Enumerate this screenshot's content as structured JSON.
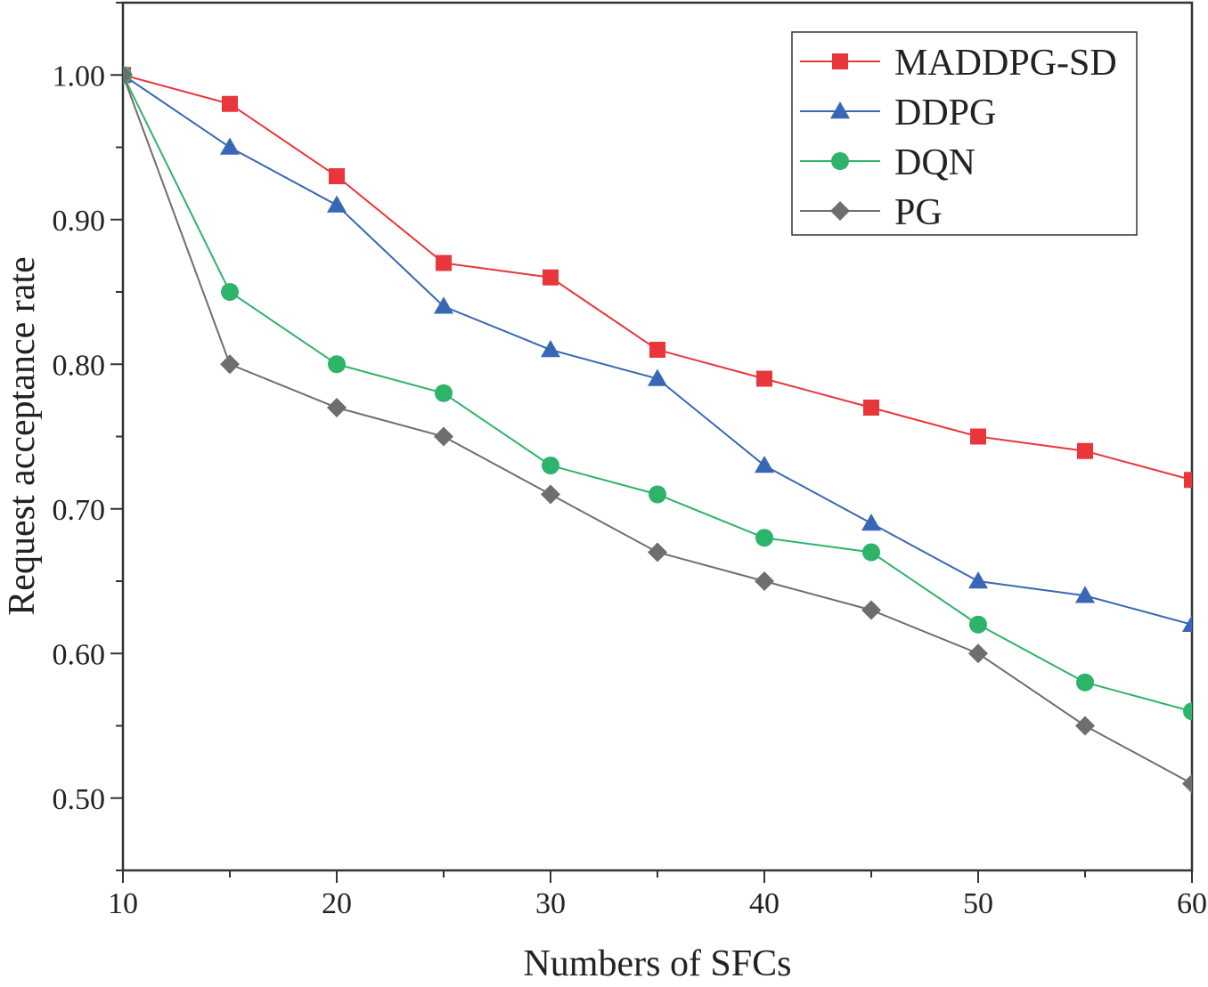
{
  "chart_data": {
    "type": "line",
    "xlabel": "Numbers of SFCs",
    "ylabel": "Request acceptance rate",
    "xlim": [
      10,
      60
    ],
    "ylim": [
      0.45,
      1.05
    ],
    "x_ticks": [
      10,
      20,
      30,
      40,
      50,
      60
    ],
    "x_tick_labels": [
      "10",
      "20",
      "30",
      "40",
      "50",
      "60"
    ],
    "y_ticks": [
      0.5,
      0.6,
      0.7,
      0.8,
      0.9,
      1.0
    ],
    "y_tick_labels": [
      "0.50",
      "0.60",
      "0.70",
      "0.80",
      "0.90",
      "1.00"
    ],
    "legend_position": "top-right",
    "x": [
      10,
      15,
      20,
      25,
      30,
      35,
      40,
      45,
      50,
      55,
      60
    ],
    "series": [
      {
        "name": "MADDPG-SD",
        "color": "#e8363b",
        "marker": "square",
        "values": [
          1.0,
          0.98,
          0.93,
          0.87,
          0.86,
          0.81,
          0.79,
          0.77,
          0.75,
          0.74,
          0.72
        ]
      },
      {
        "name": "DDPG",
        "color": "#3867b5",
        "marker": "triangle",
        "values": [
          1.0,
          0.95,
          0.91,
          0.84,
          0.81,
          0.79,
          0.73,
          0.69,
          0.65,
          0.64,
          0.62
        ]
      },
      {
        "name": "DQN",
        "color": "#2eb36a",
        "marker": "circle",
        "values": [
          1.0,
          0.85,
          0.8,
          0.78,
          0.73,
          0.71,
          0.68,
          0.67,
          0.62,
          0.58,
          0.56
        ]
      },
      {
        "name": "PG",
        "color": "#6e6e6e",
        "marker": "diamond",
        "values": [
          1.0,
          0.8,
          0.77,
          0.75,
          0.71,
          0.67,
          0.65,
          0.63,
          0.6,
          0.55,
          0.51
        ]
      }
    ]
  }
}
